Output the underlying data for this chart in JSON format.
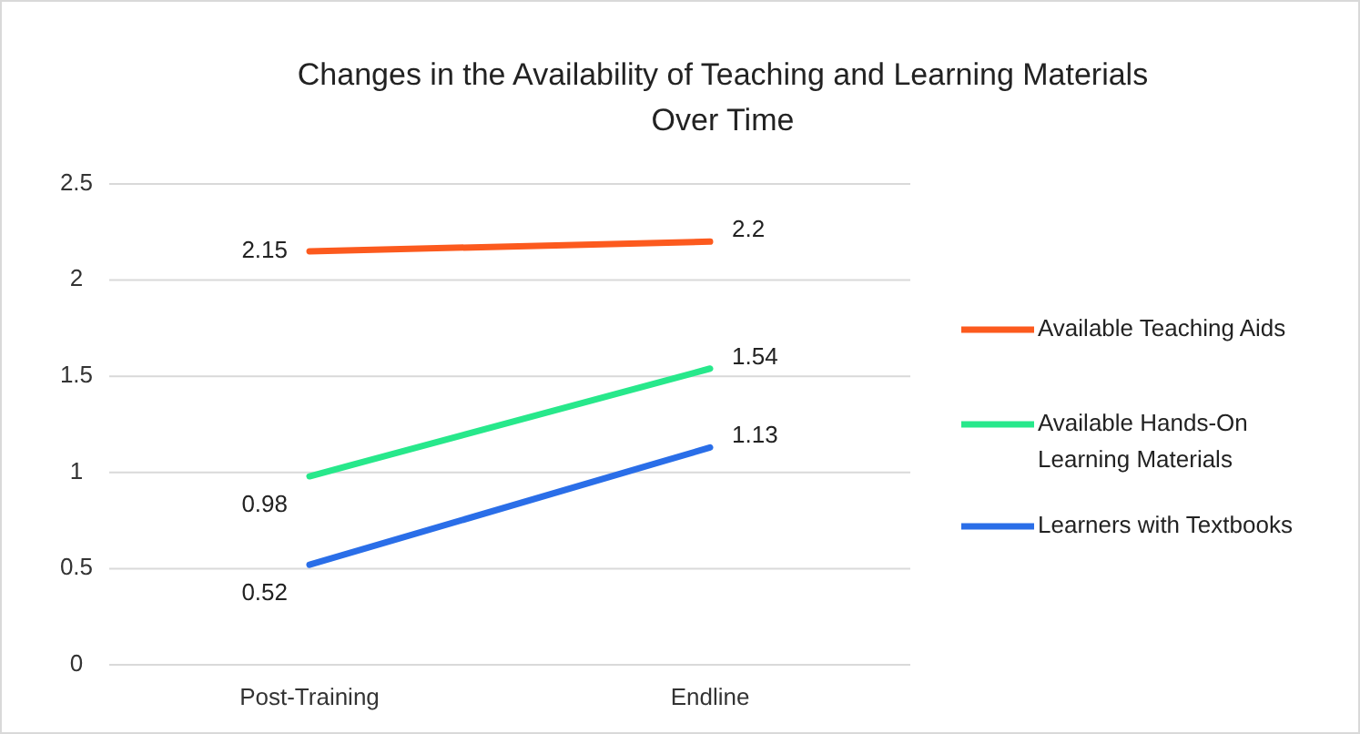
{
  "chart_data": {
    "type": "line",
    "title": "Changes in the Availability of Teaching and Learning Materials Over Time",
    "categories": [
      "Post-Training",
      "Endline"
    ],
    "series": [
      {
        "name": "Available Teaching Aids",
        "color": "#fc5a1e",
        "values": [
          2.15,
          2.2
        ]
      },
      {
        "name": "Available Hands-On Learning Materials",
        "color": "#27e88b",
        "values": [
          0.98,
          1.54
        ]
      },
      {
        "name": "Learners with Textbooks",
        "color": "#2a6ee8",
        "values": [
          0.52,
          1.13
        ]
      }
    ],
    "ylim": [
      0,
      2.5
    ],
    "yticks": [
      {
        "value": 0,
        "label": "0"
      },
      {
        "value": 0.5,
        "label": "0.5"
      },
      {
        "value": 1,
        "label": "1"
      },
      {
        "value": 1.5,
        "label": "1.5"
      },
      {
        "value": 2,
        "label": "2"
      },
      {
        "value": 2.5,
        "label": "2.5"
      }
    ],
    "grid": "y",
    "legend": "right",
    "data_labels": true,
    "marker": "none",
    "line_style": "solid"
  }
}
